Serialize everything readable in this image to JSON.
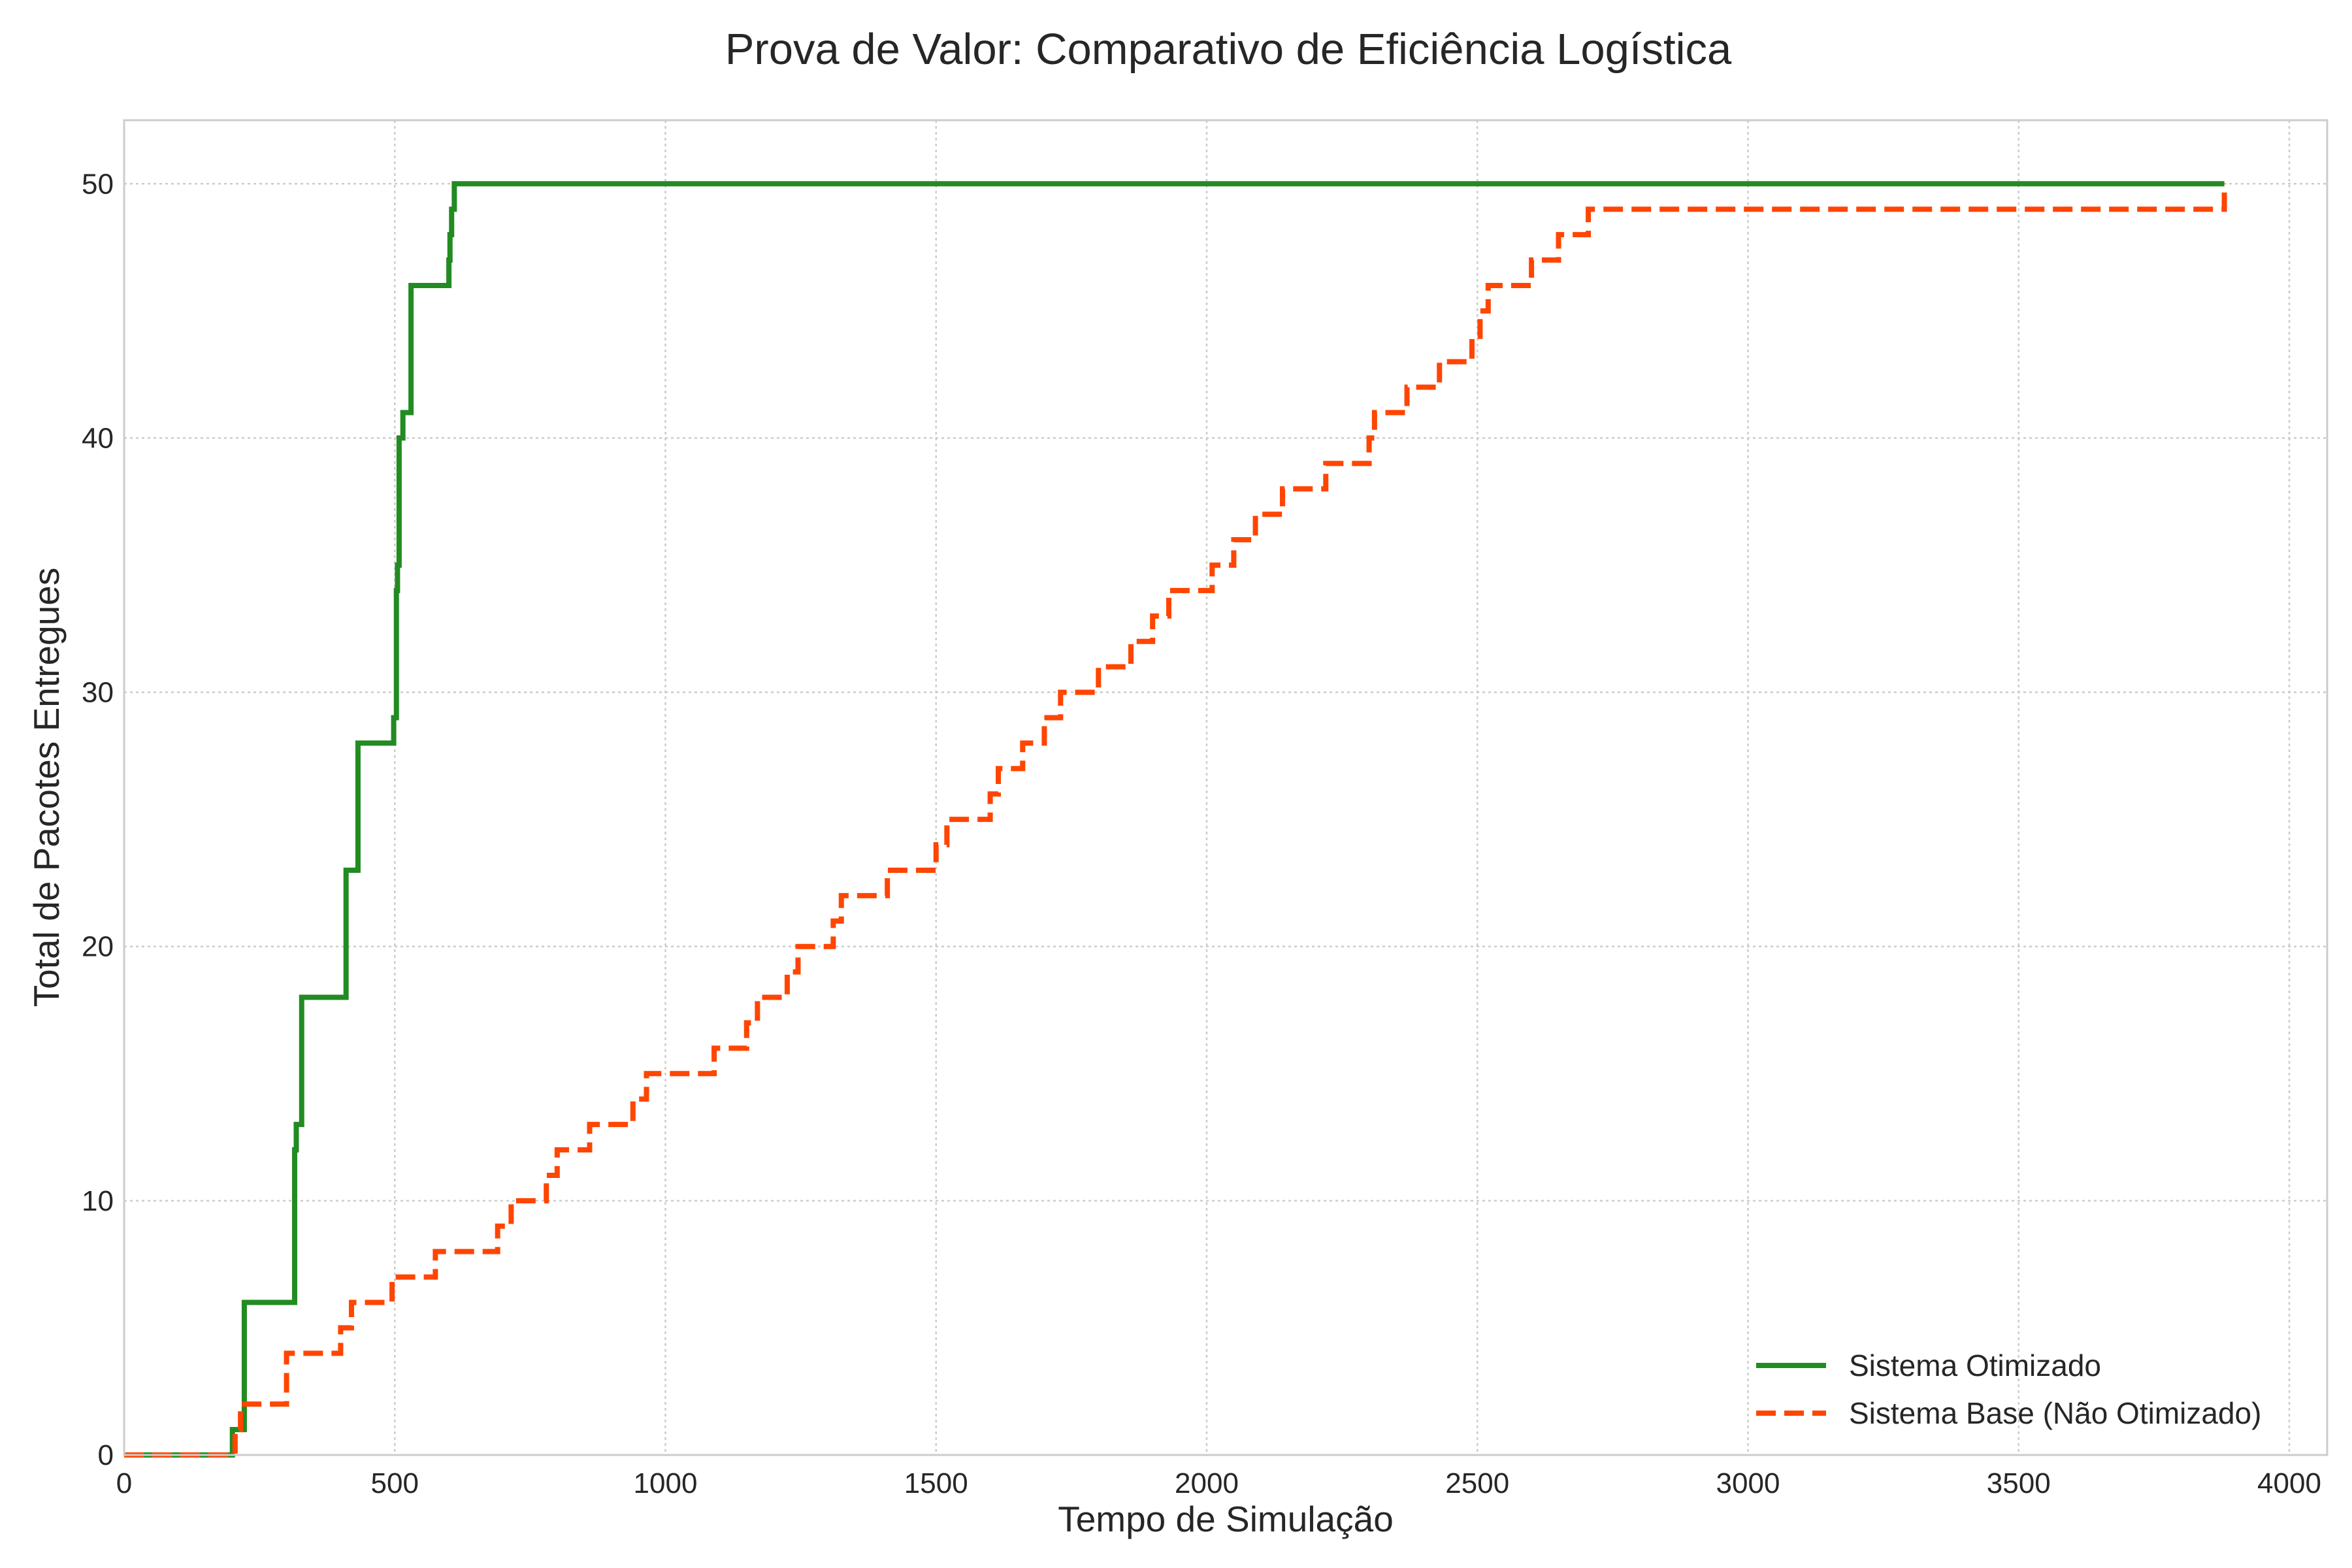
{
  "chart_data": {
    "type": "line",
    "step": "post",
    "title": "Prova de Valor: Comparativo de Eficiência Logística",
    "xlabel": "Tempo de Simulação",
    "ylabel": "Total de Pacotes Entregues",
    "xlim": [
      0,
      4070
    ],
    "ylim": [
      0,
      52.5
    ],
    "xticks": [
      0,
      500,
      1000,
      1500,
      2000,
      2500,
      3000,
      3500,
      4000
    ],
    "yticks": [
      0,
      10,
      20,
      30,
      40,
      50
    ],
    "grid": true,
    "legend_position": "lower-right",
    "series": [
      {
        "name": "Sistema Otimizado",
        "color": "#228B22",
        "dash": "solid",
        "x": [
          0,
          200,
          222,
          315,
          318,
          328,
          410,
          432,
          498,
          503,
          505,
          508,
          515,
          530,
          600,
          602,
          605,
          610,
          3880
        ],
        "y": [
          0,
          1,
          6,
          12,
          13,
          18,
          23,
          28,
          29,
          34,
          35,
          40,
          41,
          46,
          47,
          48,
          49,
          50,
          50
        ]
      },
      {
        "name": "Sistema Base (Não Otimizado)",
        "color": "#FF4500",
        "dash": "dashed",
        "x": [
          0,
          205,
          215,
          300,
          400,
          420,
          495,
          575,
          620,
          690,
          715,
          780,
          800,
          860,
          880,
          940,
          965,
          1030,
          1090,
          1150,
          1170,
          1225,
          1245,
          1310,
          1325,
          1410,
          1490,
          1500,
          1520,
          1580,
          1600,
          1615,
          1660,
          1700,
          1730,
          1790,
          1800,
          1860,
          1900,
          1930,
          2010,
          2050,
          2090,
          2140,
          2220,
          2300,
          2310,
          2370,
          2430,
          2490,
          2505,
          2520,
          2600,
          2650,
          2705,
          3880
        ],
        "y": [
          0,
          1,
          2,
          4,
          5,
          6,
          7,
          8,
          8,
          9,
          10,
          11,
          12,
          13,
          13,
          14,
          15,
          15,
          16,
          17,
          18,
          19,
          20,
          21,
          22,
          23,
          23,
          24,
          25,
          25,
          26,
          27,
          28,
          29,
          30,
          30,
          31,
          32,
          33,
          34,
          35,
          36,
          37,
          38,
          39,
          40,
          41,
          42,
          43,
          44,
          45,
          46,
          47,
          48,
          49,
          50
        ]
      }
    ]
  }
}
